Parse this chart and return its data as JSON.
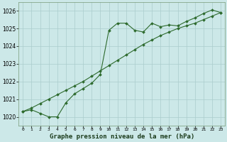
{
  "title": "Graphe pression niveau de la mer (hPa)",
  "background_color": "#cce8e8",
  "grid_color": "#aacccc",
  "line_color": "#2d6a2d",
  "x_labels": [
    "0",
    "1",
    "2",
    "3",
    "4",
    "5",
    "6",
    "7",
    "8",
    "9",
    "10",
    "11",
    "12",
    "13",
    "14",
    "15",
    "16",
    "17",
    "18",
    "19",
    "20",
    "21",
    "22",
    "23"
  ],
  "x_values": [
    0,
    1,
    2,
    3,
    4,
    5,
    6,
    7,
    8,
    9,
    10,
    11,
    12,
    13,
    14,
    15,
    16,
    17,
    18,
    19,
    20,
    21,
    22,
    23
  ],
  "series1": [
    1020.3,
    1020.4,
    1020.2,
    1020.0,
    1020.0,
    1020.8,
    1021.3,
    1021.6,
    1021.9,
    1022.4,
    1024.9,
    1025.3,
    1025.3,
    1024.9,
    1024.8,
    1025.3,
    1025.1,
    1025.2,
    1025.15,
    1025.4,
    1025.6,
    1025.85,
    1026.05,
    1025.9
  ],
  "series2": [
    1020.3,
    1020.5,
    1020.75,
    1021.0,
    1021.25,
    1021.5,
    1021.75,
    1022.0,
    1022.3,
    1022.6,
    1022.9,
    1023.2,
    1023.5,
    1023.8,
    1024.1,
    1024.35,
    1024.6,
    1024.8,
    1025.0,
    1025.15,
    1025.3,
    1025.5,
    1025.7,
    1025.9
  ],
  "ylim": [
    1019.5,
    1026.5
  ],
  "yticks": [
    1020,
    1021,
    1022,
    1023,
    1024,
    1025,
    1026
  ],
  "ylabel_fontsize": 6,
  "xlabel_fontsize": 6,
  "title_fontsize": 6.5,
  "marker_size": 2.0,
  "line_width": 0.8
}
